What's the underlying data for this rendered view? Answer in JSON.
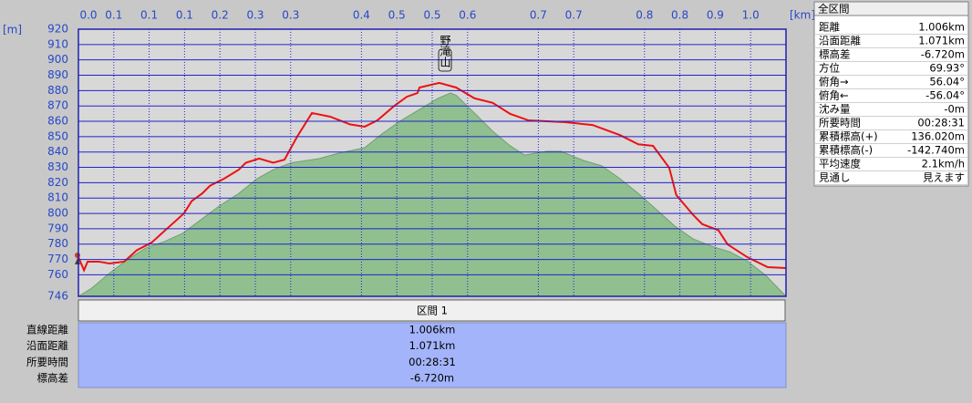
{
  "chart_data": {
    "type": "line",
    "x_unit": "[km]",
    "y_unit": "[m]",
    "xlim": [
      0,
      1.006
    ],
    "ylim": [
      746,
      920
    ],
    "xticks": [
      {
        "value": 0,
        "label": "0.0"
      },
      {
        "value": 0.0503,
        "label": "0.1"
      },
      {
        "value": 0.1006,
        "label": "0.1"
      },
      {
        "value": 0.1509,
        "label": "0.1"
      },
      {
        "value": 0.2012,
        "label": "0.2"
      },
      {
        "value": 0.2515,
        "label": "0.3"
      },
      {
        "value": 0.3018,
        "label": "0.3"
      },
      {
        "value": 0.4024,
        "label": "0.4"
      },
      {
        "value": 0.4527,
        "label": "0.5"
      },
      {
        "value": 0.503,
        "label": "0.5"
      },
      {
        "value": 0.5533,
        "label": "0.6"
      },
      {
        "value": 0.6539,
        "label": "0.7"
      },
      {
        "value": 0.7042,
        "label": "0.7"
      },
      {
        "value": 0.8048,
        "label": "0.8"
      },
      {
        "value": 0.8551,
        "label": "0.8"
      },
      {
        "value": 0.9054,
        "label": "0.9"
      },
      {
        "value": 0.9557,
        "label": "1.0"
      }
    ],
    "yticks": [
      746,
      760,
      770,
      780,
      790,
      800,
      810,
      820,
      830,
      840,
      850,
      860,
      870,
      880,
      890,
      900,
      910,
      920
    ],
    "grid": true,
    "peak_label": "野滝山",
    "series": [
      {
        "color": "#90c090",
        "fill": true,
        "x": [
          0,
          0.018,
          0.044,
          0.07,
          0.096,
          0.122,
          0.148,
          0.176,
          0.2,
          0.228,
          0.254,
          0.277,
          0.303,
          0.342,
          0.368,
          0.407,
          0.433,
          0.459,
          0.485,
          0.511,
          0.529,
          0.537,
          0.563,
          0.589,
          0.614,
          0.634,
          0.666,
          0.686,
          0.718,
          0.744,
          0.77,
          0.796,
          0.822,
          0.848,
          0.874,
          0.9,
          0.926,
          0.951,
          0.977,
          1.006
        ],
        "values": [
          746,
          751,
          761,
          770,
          777.5,
          781.6,
          787,
          796.5,
          804.8,
          813,
          822.6,
          828.5,
          833,
          835.7,
          839,
          842.8,
          852.3,
          860.6,
          867.7,
          874.9,
          878.4,
          877,
          865.4,
          853.5,
          844,
          838,
          840.4,
          840.4,
          834.5,
          831,
          822.6,
          813,
          802.4,
          791.7,
          783.4,
          778.7,
          775,
          769,
          759.7,
          746
        ]
      },
      {
        "color": "#ee1111",
        "fill": false,
        "x": [
          0,
          0.008,
          0.013,
          0.029,
          0.044,
          0.065,
          0.083,
          0.104,
          0.127,
          0.15,
          0.161,
          0.176,
          0.187,
          0.207,
          0.228,
          0.238,
          0.257,
          0.277,
          0.293,
          0.311,
          0.332,
          0.358,
          0.386,
          0.407,
          0.425,
          0.449,
          0.467,
          0.482,
          0.485,
          0.513,
          0.537,
          0.563,
          0.589,
          0.614,
          0.64,
          0.666,
          0.692,
          0.731,
          0.77,
          0.796,
          0.817,
          0.84,
          0.85,
          0.874,
          0.887,
          0.91,
          0.923,
          0.951,
          0.98,
          1.006
        ],
        "values": [
          771.5,
          763,
          768.6,
          768.6,
          767.4,
          768.6,
          776,
          781,
          790.5,
          800,
          808,
          813,
          818,
          822.6,
          828.5,
          833,
          835.7,
          833,
          835,
          850,
          865.4,
          863,
          858,
          856.5,
          860.6,
          870,
          876,
          878.4,
          882,
          885,
          882,
          875,
          872,
          864.8,
          860.6,
          860,
          859.4,
          857.6,
          851,
          845,
          844,
          829.7,
          812,
          799,
          793,
          789,
          779.8,
          771.5,
          765,
          764.4
        ]
      }
    ]
  },
  "summary_panel": {
    "title": "全区間",
    "rows": [
      [
        "距離",
        "1.006km"
      ],
      [
        "沿面距離",
        "1.071km"
      ],
      [
        "標高差",
        "-6.720m"
      ],
      [
        "方位",
        "69.93°"
      ],
      [
        "俯角→",
        "56.04°"
      ],
      [
        "俯角←",
        "-56.04°"
      ],
      [
        "沈み量",
        "-0m"
      ],
      [
        "所要時間",
        "00:28:31"
      ],
      [
        "累積標高(+)",
        "136.020m"
      ],
      [
        "累積標高(-)",
        "-142.740m"
      ],
      [
        "平均速度",
        "2.1km/h"
      ],
      [
        "見通し",
        "見えます"
      ]
    ]
  },
  "section_panel": {
    "title": "区間 1",
    "rows": [
      [
        "直線距離",
        "1.006km"
      ],
      [
        "沿面距離",
        "1.071km"
      ],
      [
        "所要時間",
        "00:28:31"
      ],
      [
        "標高差",
        "-6.720m"
      ]
    ]
  }
}
